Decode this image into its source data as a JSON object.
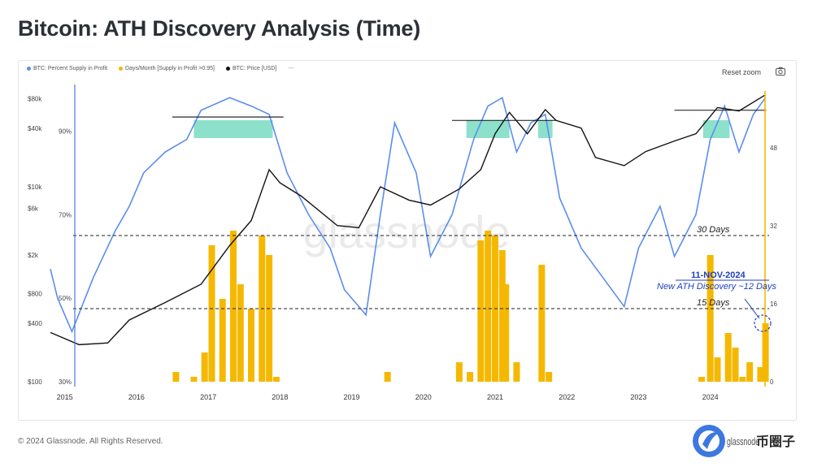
{
  "title": "Bitcoin: ATH Discovery Analysis (Time)",
  "legend": {
    "items": [
      {
        "label": "BTC: Percent Supply in Profit",
        "color": "#5b8def"
      },
      {
        "label": "Days/Month [Supply in Profit >0.95]",
        "color": "#f5b800"
      },
      {
        "label": "BTC: Price [USD]",
        "color": "#111111"
      }
    ],
    "more": "---"
  },
  "toolbar": {
    "reset_label": "Reset zoom"
  },
  "footer": {
    "copyright": "© 2024 Glassnode. All Rights Reserved."
  },
  "watermark": "glassnode",
  "brand": {
    "logo_text": "币圈子",
    "partial_text": "glassnode"
  },
  "chart_data": {
    "type": "line",
    "x_ticks": [
      "2015",
      "2016",
      "2017",
      "2018",
      "2019",
      "2020",
      "2021",
      "2022",
      "2023",
      "2024"
    ],
    "price_axis": {
      "ticks": [
        "$80k",
        "$40k",
        "$10k",
        "$6k",
        "$2k",
        "$800",
        "$400",
        "$100"
      ],
      "scale": "log"
    },
    "percent_axis": {
      "ticks": [
        "90%",
        "70%",
        "50%",
        "30%"
      ]
    },
    "days_axis": {
      "ticks": [
        "48",
        "32",
        "16",
        "0"
      ]
    },
    "annotations": {
      "line_30": "30 Days",
      "line_15": "15 Days",
      "date": "11-NOV-2024",
      "note": "New ATH Discovery ~12 Days"
    },
    "colors": {
      "supply": "#5b8def",
      "days": "#f5b800",
      "price": "#111111",
      "ath_band": "#2fc8a0",
      "annotation": "#1f3fbf"
    },
    "series": [
      {
        "name": "BTC: Price [USD]",
        "x": [
          2014.9,
          2015.3,
          2015.7,
          2016.0,
          2016.5,
          2017.0,
          2017.4,
          2017.7,
          2017.95,
          2018.1,
          2018.4,
          2018.9,
          2019.2,
          2019.5,
          2019.9,
          2020.2,
          2020.6,
          2020.9,
          2021.1,
          2021.3,
          2021.55,
          2021.8,
          2021.95,
          2022.3,
          2022.5,
          2022.9,
          2023.2,
          2023.6,
          2023.9,
          2024.2,
          2024.5,
          2024.87
        ],
        "y": [
          320,
          240,
          250,
          430,
          650,
          1000,
          2500,
          4500,
          15000,
          11000,
          8000,
          4000,
          3800,
          10000,
          7300,
          6500,
          9500,
          15000,
          35000,
          58000,
          35000,
          62000,
          48000,
          40000,
          20000,
          16500,
          23000,
          29500,
          35000,
          65000,
          60000,
          88000
        ]
      },
      {
        "name": "Days/Month [Supply in Profit >0.95]",
        "x": [
          2016.65,
          2016.9,
          2017.05,
          2017.15,
          2017.3,
          2017.45,
          2017.55,
          2017.7,
          2017.85,
          2017.95,
          2018.05,
          2019.6,
          2020.6,
          2020.75,
          2020.9,
          2021.0,
          2021.1,
          2021.2,
          2021.25,
          2021.4,
          2021.75,
          2021.85,
          2023.98,
          2024.1,
          2024.2,
          2024.35,
          2024.45,
          2024.55,
          2024.65,
          2024.8,
          2024.87
        ],
        "values": [
          2,
          1,
          6,
          28,
          17,
          31,
          20,
          15,
          30,
          26,
          1,
          2,
          4,
          2,
          29,
          31,
          30,
          27,
          20,
          4,
          24,
          2,
          1,
          26,
          5,
          10,
          7,
          1,
          4,
          3,
          12
        ]
      },
      {
        "name": "BTC: Percent Supply in Profit",
        "x": [
          2014.9,
          2015.0,
          2015.2,
          2015.5,
          2015.8,
          2016.0,
          2016.2,
          2016.5,
          2016.8,
          2017.0,
          2017.4,
          2017.7,
          2017.95,
          2018.2,
          2018.5,
          2018.8,
          2019.0,
          2019.3,
          2019.5,
          2019.7,
          2020.0,
          2020.2,
          2020.5,
          2020.8,
          2021.0,
          2021.2,
          2021.4,
          2021.6,
          2021.8,
          2022.0,
          2022.3,
          2022.6,
          2022.9,
          2023.1,
          2023.4,
          2023.6,
          2023.9,
          2024.1,
          2024.3,
          2024.5,
          2024.7,
          2024.87
        ],
        "y": [
          57,
          50,
          42,
          55,
          66,
          72,
          80,
          85,
          88,
          95,
          98,
          96,
          94,
          80,
          70,
          62,
          52,
          46,
          70,
          92,
          80,
          60,
          70,
          88,
          96,
          98,
          85,
          92,
          94,
          74,
          62,
          55,
          48,
          62,
          72,
          60,
          70,
          88,
          96,
          85,
          94,
          98
        ]
      }
    ]
  }
}
